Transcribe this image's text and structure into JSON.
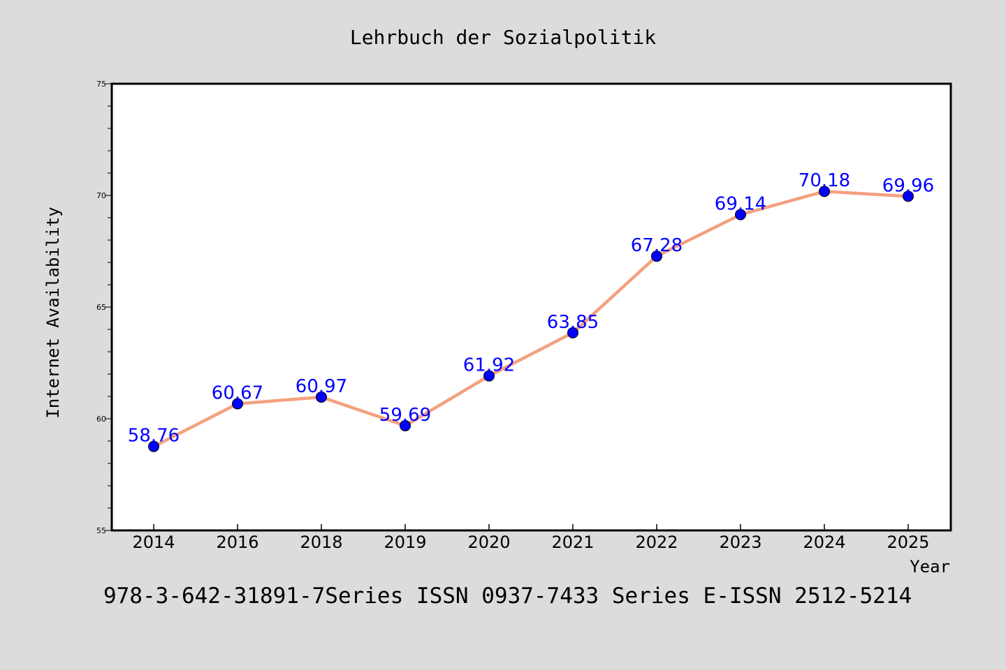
{
  "chart_data": {
    "type": "line",
    "title": "Lehrbuch der Sozialpolitik",
    "xlabel": "Year",
    "ylabel": "Internet Availability",
    "categories": [
      "2014",
      "2016",
      "2018",
      "2019",
      "2020",
      "2021",
      "2022",
      "2023",
      "2024",
      "2025"
    ],
    "series": [
      {
        "values": [
          58.76,
          60.67,
          60.97,
          59.69,
          61.92,
          63.85,
          67.28,
          69.14,
          70.18,
          69.96
        ],
        "line_color": "#f4a07f",
        "marker_color": "#0000ff"
      }
    ],
    "data_labels": [
      "58.76",
      "60.67",
      "60.97",
      "59.69",
      "61.92",
      "63.85",
      "67.28",
      "69.14",
      "70.18",
      "69.96"
    ],
    "ylim": [
      55,
      75
    ],
    "yticks": [
      55,
      60,
      65,
      70,
      75
    ],
    "grid": false,
    "legend": "none",
    "footer": "978-3-642-31891-7Series ISSN 0937-7433 Series E-ISSN 2512-5214"
  },
  "colors": {
    "background": "#dcdcdc",
    "plot_background": "#ffffff",
    "label_color": "#0000ff"
  }
}
